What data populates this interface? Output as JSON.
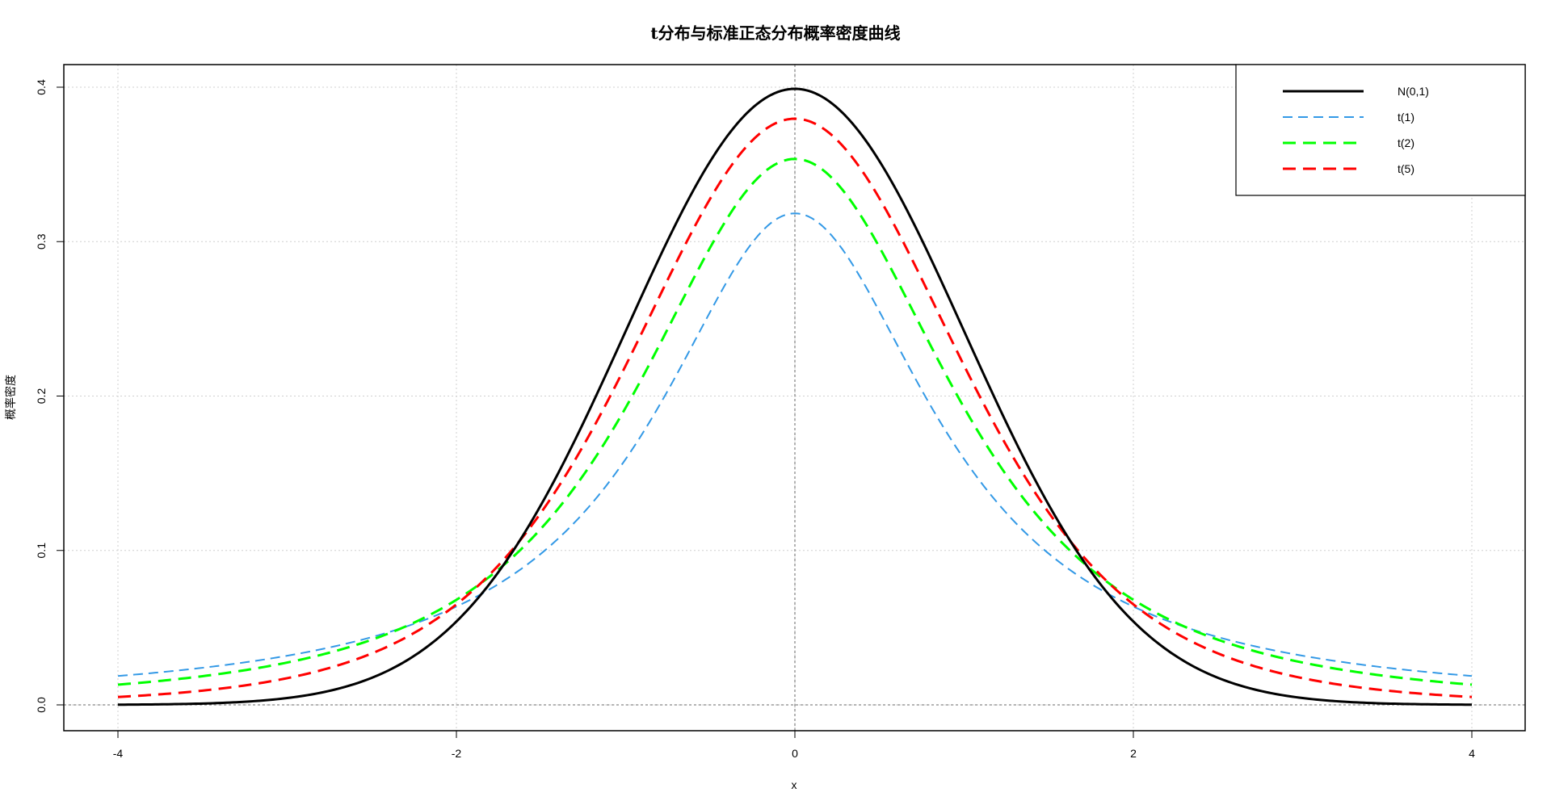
{
  "chart_data": {
    "type": "line",
    "title": "t分布与标准正态分布概率密度曲线",
    "xlabel": "x",
    "ylabel": "概率密度",
    "xlim": [
      -4,
      4
    ],
    "ylim": [
      0,
      0.4
    ],
    "x_ticks": [
      "-4",
      "-2",
      "0",
      "2",
      "4"
    ],
    "y_ticks": [
      "0.0",
      "0.1",
      "0.2",
      "0.3",
      "0.4"
    ],
    "grid": true,
    "legend_position": "top-right",
    "reference_lines": {
      "vertical_x": 0,
      "horizontal_y": 0
    },
    "series": [
      {
        "name": "N(0,1)",
        "color": "#000000",
        "dash": "solid",
        "distribution": "normal",
        "df": null
      },
      {
        "name": "t(1)",
        "color": "#3399e6",
        "dash": "dashed",
        "distribution": "t",
        "df": 1
      },
      {
        "name": "t(2)",
        "color": "#00ff00",
        "dash": "dashed",
        "distribution": "t",
        "df": 2
      },
      {
        "name": "t(5)",
        "color": "#ff0000",
        "dash": "dashed",
        "distribution": "t",
        "df": 5
      }
    ]
  }
}
